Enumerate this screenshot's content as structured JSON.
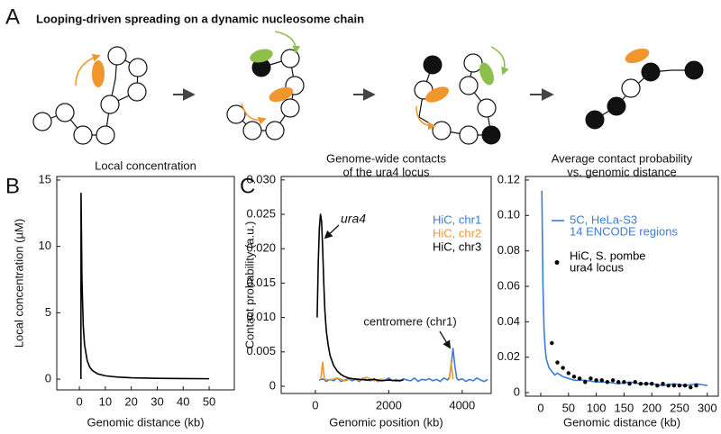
{
  "figure": {
    "panel_labels": [
      "A",
      "B",
      "C"
    ],
    "panel_a_title": "Looping-driven spreading on a dynamic nucleosome chain"
  },
  "chart_data": [
    {
      "type": "line",
      "title": [
        "Local concentration"
      ],
      "x_label": "Genomic distance (kb)",
      "y_label": "Local concentration (µM)",
      "xlim": [
        -8.7,
        59.7
      ],
      "ylim": [
        -0.81,
        15.27
      ],
      "xticks": [
        0,
        10,
        20,
        30,
        40,
        50
      ],
      "yticks": [
        0,
        5,
        10,
        15
      ],
      "series": [
        {
          "color": "#000000",
          "x": [
            0.6,
            0.65,
            1,
            1.5,
            2,
            3,
            4,
            5,
            7,
            10,
            15,
            20,
            30,
            40,
            50
          ],
          "values": [
            0,
            14,
            7.5,
            4,
            2.6,
            1.4,
            0.9,
            0.65,
            0.4,
            0.25,
            0.15,
            0.1,
            0.06,
            0.04,
            0.03
          ]
        }
      ]
    },
    {
      "type": "line",
      "title": [
        "Genome-wide contacts",
        "of the ura4 locus"
      ],
      "x_label": "Genomic position (kb)",
      "y_label": "Contact probability (a.u.)",
      "xlim": [
        -930,
        4790
      ],
      "ylim": [
        -0.00105,
        0.0305
      ],
      "xticks": [
        0,
        2000,
        4000
      ],
      "yticks": [
        0,
        0.005,
        {
          "value": 0.01,
          "label": "0.010"
        },
        0.015,
        {
          "value": 0.02,
          "label": "0.020"
        },
        0.025,
        {
          "value": 0.03,
          "label": "0.030"
        }
      ],
      "annotations": [
        "ura4",
        "centromere (chr1)"
      ],
      "series": [
        {
          "name": [
            "HiC, chr1"
          ],
          "color": "#3b7dd8",
          "x": [
            100,
            200,
            300,
            400,
            500,
            600,
            700,
            800,
            900,
            1000,
            1100,
            1200,
            1300,
            1400,
            1500,
            1600,
            1700,
            1800,
            1900,
            2000,
            2100,
            2200,
            2300,
            2400,
            2500,
            2600,
            2700,
            2800,
            2900,
            3000,
            3100,
            3200,
            3300,
            3400,
            3500,
            3600,
            3650,
            3700,
            3750,
            3800,
            3850,
            3900,
            4000,
            4100,
            4200,
            4300,
            4400,
            4500,
            4600,
            4700
          ],
          "values": [
            0.0009,
            0.0011,
            0.0007,
            0.001,
            0.0008,
            0.0012,
            0.0007,
            0.0009,
            0.0011,
            0.0008,
            0.001,
            0.0007,
            0.0012,
            0.0009,
            0.0008,
            0.0011,
            0.0007,
            0.001,
            0.0009,
            0.0012,
            0.0008,
            0.001,
            0.0007,
            0.0011,
            0.0009,
            0.0008,
            0.0012,
            0.0007,
            0.001,
            0.0009,
            0.0011,
            0.0008,
            0.001,
            0.0007,
            0.0012,
            0.0009,
            0.0013,
            0.003,
            0.0055,
            0.003,
            0.0012,
            0.0009,
            0.0011,
            0.0007,
            0.001,
            0.0008,
            0.0012,
            0.0009,
            0.0007,
            0.001
          ]
        },
        {
          "name": [
            "HiC, chr2"
          ],
          "color": "#f0962d",
          "x": [
            150,
            200,
            250,
            400,
            600,
            800,
            1000,
            1200,
            1400,
            1600,
            1800,
            2000,
            2500,
            3650,
            3700,
            3750
          ],
          "values": [
            0.001,
            0.0035,
            0.001,
            0.0009,
            0.0012,
            0.0008,
            0.0011,
            0.0009,
            0.0013,
            0.0008,
            0.001,
            0.0009,
            null,
            0.001,
            0.0035,
            0.001
          ]
        },
        {
          "name": [
            "HiC, chr3"
          ],
          "color": "#000000",
          "x": [
            50,
            80,
            110,
            140,
            170,
            200,
            230,
            260,
            300,
            350,
            400,
            500,
            600,
            700,
            800,
            900,
            1000,
            1200,
            1400,
            1600,
            1800,
            2000,
            2200,
            2400
          ],
          "values": [
            0.01,
            0.018,
            0.023,
            0.025,
            0.024,
            0.02,
            0.015,
            0.011,
            0.008,
            0.006,
            0.0045,
            0.003,
            0.0022,
            0.0017,
            0.0014,
            0.0012,
            0.0011,
            0.001,
            0.0009,
            0.001,
            0.0008,
            0.0009,
            0.0008,
            0.0009
          ]
        }
      ]
    },
    {
      "type": "line",
      "title": [
        "Average contact probability",
        "vs. genomic distance"
      ],
      "x_label": "Genomic distance (kb)",
      "xlim": [
        -27.6,
        319.8
      ],
      "ylim": [
        -0.002,
        0.122
      ],
      "xticks": [
        0,
        50,
        100,
        150,
        200,
        250,
        300
      ],
      "yticks": [
        0,
        0.02,
        0.04,
        0.06,
        0.08,
        {
          "value": 0.1,
          "label": "0.10"
        },
        0.12
      ],
      "legend_swatch": true,
      "series": [
        {
          "name": [
            "5C, HeLa-S3",
            "14 ENCODE regions"
          ],
          "color": "#3b7dd8",
          "style": "line",
          "x": [
            2,
            4,
            6,
            8,
            10,
            15,
            20,
            25,
            30,
            40,
            50,
            60,
            80,
            100,
            120,
            140,
            160,
            180,
            200,
            220,
            240,
            260,
            280,
            300
          ],
          "values": [
            0.114,
            0.06,
            0.035,
            0.025,
            0.019,
            0.014,
            0.012,
            0.01,
            0.011,
            0.009,
            0.008,
            0.007,
            0.007,
            0.006,
            0.006,
            0.005,
            0.006,
            0.005,
            0.005,
            0.004,
            0.005,
            0.004,
            0.005,
            0.004
          ]
        },
        {
          "name": [
            "HiC, S. pombe",
            "ura4 locus"
          ],
          "color": "#000000",
          "style": "points",
          "x": [
            20,
            30,
            40,
            50,
            60,
            70,
            80,
            90,
            100,
            110,
            120,
            130,
            140,
            150,
            160,
            170,
            180,
            190,
            200,
            210,
            220,
            230,
            240,
            250,
            260,
            270,
            280
          ],
          "values": [
            0.028,
            0.017,
            0.014,
            0.011,
            0.009,
            0.008,
            0.006,
            0.008,
            0.007,
            0.007,
            0.006,
            0.007,
            0.006,
            0.006,
            0.005,
            0.006,
            0.005,
            0.005,
            0.005,
            0.004,
            0.005,
            0.004,
            0.004,
            0.004,
            0.004,
            0.003,
            0.004
          ]
        }
      ]
    }
  ]
}
